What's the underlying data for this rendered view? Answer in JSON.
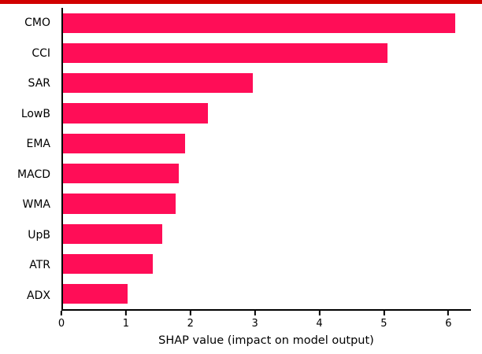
{
  "window": {
    "top_strip_color": "#d10000"
  },
  "chart_data": {
    "type": "bar",
    "orientation": "horizontal",
    "title": "",
    "xlabel": "SHAP value (impact on model output)",
    "ylabel": "",
    "categories": [
      "CMO",
      "CCI",
      "SAR",
      "LowB",
      "EMA",
      "MACD",
      "WMA",
      "UpB",
      "ATR",
      "ADX"
    ],
    "values": [
      6.1,
      5.05,
      2.95,
      2.25,
      1.9,
      1.8,
      1.75,
      1.55,
      1.4,
      1.0
    ],
    "xlim": [
      0,
      6.35
    ],
    "x_ticks": [
      0,
      1,
      2,
      3,
      4,
      5,
      6
    ],
    "bar_color": "#ff0d57",
    "axis_color": "#000000",
    "grid": false,
    "legend": false
  }
}
